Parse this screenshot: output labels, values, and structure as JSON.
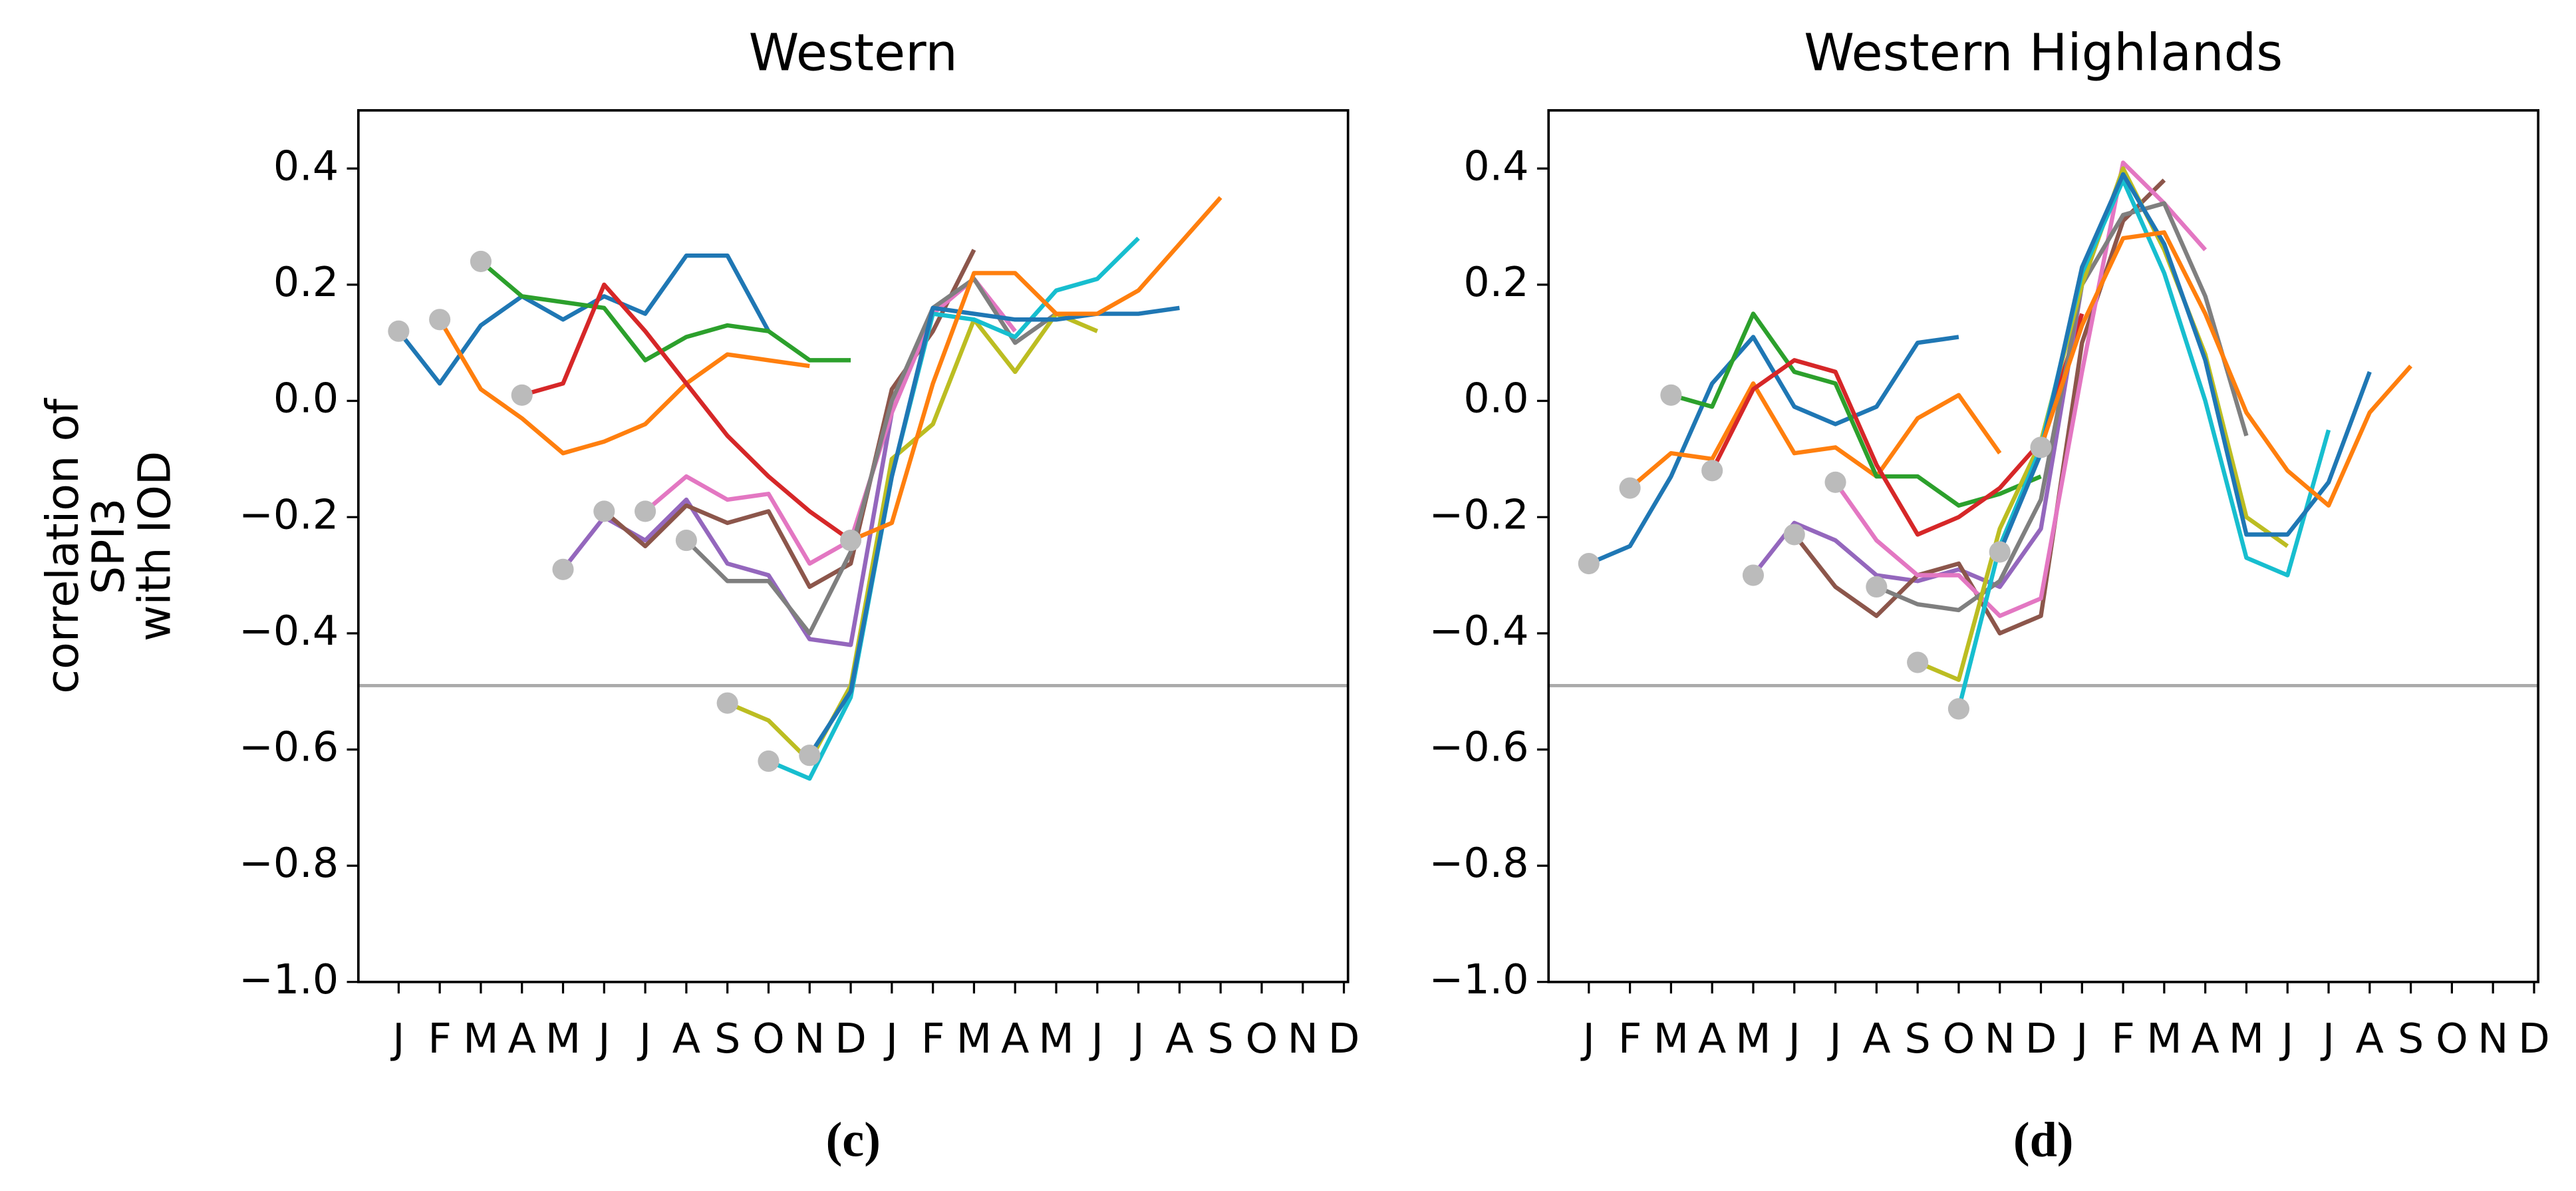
{
  "chart_data": [
    {
      "type": "line",
      "title": "Western",
      "caption": "(c)",
      "ylabel": [
        "correlation of",
        "SPI3",
        "with IOD"
      ],
      "categories": [
        "J",
        "F",
        "M",
        "A",
        "M",
        "J",
        "J",
        "A",
        "S",
        "O",
        "N",
        "D",
        "J",
        "F",
        "M",
        "A",
        "M",
        "J",
        "J",
        "A",
        "S",
        "O",
        "N",
        "D"
      ],
      "ylim": [
        -1.0,
        0.5
      ],
      "yticks": [
        0.4,
        0.2,
        {
          "value": 0.0,
          "label": "0.0"
        },
        {
          "value": -0.2,
          "label": "−0.2"
        },
        {
          "value": -0.4,
          "label": "−0.4"
        },
        {
          "value": -0.6,
          "label": "−0.6"
        },
        {
          "value": -0.8,
          "label": "−0.8"
        },
        {
          "value": -1.0,
          "label": "−1.0"
        }
      ],
      "hline": -0.49,
      "hline_color": "#aaaaaa",
      "start_marker_color": "#bbbbbb",
      "series": [
        {
          "color": "#1f77b4",
          "values": [
            0.12,
            0.03,
            0.13,
            0.18,
            0.14,
            0.18,
            0.15,
            0.25,
            0.25,
            0.12,
            null,
            null,
            null,
            null,
            null,
            null,
            null,
            null,
            null,
            null,
            null,
            null,
            null,
            null
          ]
        },
        {
          "color": "#ff7f0e",
          "values": [
            null,
            0.14,
            0.02,
            -0.03,
            -0.09,
            -0.07,
            -0.04,
            0.03,
            0.08,
            0.07,
            0.06,
            null,
            null,
            null,
            null,
            null,
            null,
            null,
            null,
            null,
            null,
            null,
            null,
            null
          ]
        },
        {
          "color": "#2ca02c",
          "values": [
            null,
            null,
            0.24,
            0.18,
            0.17,
            0.16,
            0.07,
            0.11,
            0.13,
            0.12,
            0.07,
            0.07,
            null,
            null,
            null,
            null,
            null,
            null,
            null,
            null,
            null,
            null,
            null,
            null
          ]
        },
        {
          "color": "#d62728",
          "values": [
            null,
            null,
            null,
            0.01,
            0.03,
            0.2,
            0.12,
            0.03,
            -0.06,
            -0.13,
            -0.19,
            -0.24,
            null,
            null,
            null,
            null,
            null,
            null,
            null,
            null,
            null,
            null,
            null,
            null
          ]
        },
        {
          "color": "#9467bd",
          "values": [
            null,
            null,
            null,
            null,
            -0.29,
            -0.2,
            -0.24,
            -0.17,
            -0.28,
            -0.3,
            -0.41,
            -0.42,
            -0.02,
            0.15,
            null,
            null,
            null,
            null,
            null,
            null,
            null,
            null,
            null,
            null
          ]
        },
        {
          "color": "#8c564b",
          "values": [
            null,
            null,
            null,
            null,
            null,
            -0.19,
            -0.25,
            -0.18,
            -0.21,
            -0.19,
            -0.32,
            -0.28,
            0.02,
            0.12,
            0.26,
            null,
            null,
            null,
            null,
            null,
            null,
            null,
            null,
            null
          ]
        },
        {
          "color": "#e377c2",
          "values": [
            null,
            null,
            null,
            null,
            null,
            null,
            -0.19,
            -0.13,
            -0.17,
            -0.16,
            -0.28,
            -0.24,
            -0.02,
            0.15,
            0.21,
            0.12,
            null,
            null,
            null,
            null,
            null,
            null,
            null,
            null
          ]
        },
        {
          "color": "#7f7f7f",
          "values": [
            null,
            null,
            null,
            null,
            null,
            null,
            null,
            -0.24,
            -0.31,
            -0.31,
            -0.4,
            -0.26,
            0.0,
            0.16,
            0.21,
            0.1,
            0.15,
            null,
            null,
            null,
            null,
            null,
            null,
            null
          ]
        },
        {
          "color": "#bcbd22",
          "values": [
            null,
            null,
            null,
            null,
            null,
            null,
            null,
            null,
            -0.52,
            -0.55,
            -0.62,
            -0.49,
            -0.1,
            -0.04,
            0.14,
            0.05,
            0.15,
            0.12,
            null,
            null,
            null,
            null,
            null,
            null
          ]
        },
        {
          "color": "#17becf",
          "values": [
            null,
            null,
            null,
            null,
            null,
            null,
            null,
            null,
            null,
            -0.62,
            -0.65,
            -0.51,
            -0.13,
            0.15,
            0.14,
            0.11,
            0.19,
            0.21,
            0.28,
            null,
            null,
            null,
            null,
            null
          ]
        },
        {
          "color": "#1f77b4",
          "values": [
            null,
            null,
            null,
            null,
            null,
            null,
            null,
            null,
            null,
            null,
            -0.61,
            -0.5,
            -0.13,
            0.16,
            0.15,
            0.14,
            0.14,
            0.15,
            0.15,
            0.16,
            null,
            null,
            null,
            null
          ]
        },
        {
          "color": "#ff7f0e",
          "values": [
            null,
            null,
            null,
            null,
            null,
            null,
            null,
            null,
            null,
            null,
            null,
            -0.24,
            -0.21,
            0.03,
            0.22,
            0.22,
            0.15,
            0.15,
            0.19,
            0.27,
            0.35,
            null,
            null,
            null
          ]
        }
      ]
    },
    {
      "type": "line",
      "title": "Western Highlands",
      "caption": "(d)",
      "categories": [
        "J",
        "F",
        "M",
        "A",
        "M",
        "J",
        "J",
        "A",
        "S",
        "O",
        "N",
        "D",
        "J",
        "F",
        "M",
        "A",
        "M",
        "J",
        "J",
        "A",
        "S",
        "O",
        "N",
        "D"
      ],
      "ylim": [
        -1.0,
        0.5
      ],
      "yticks": [
        0.4,
        0.2,
        {
          "value": 0.0,
          "label": "0.0"
        },
        {
          "value": -0.2,
          "label": "−0.2"
        },
        {
          "value": -0.4,
          "label": "−0.4"
        },
        {
          "value": -0.6,
          "label": "−0.6"
        },
        {
          "value": -0.8,
          "label": "−0.8"
        },
        {
          "value": -1.0,
          "label": "−1.0"
        }
      ],
      "hline": -0.49,
      "hline_color": "#aaaaaa",
      "start_marker_color": "#bbbbbb",
      "series": [
        {
          "color": "#1f77b4",
          "values": [
            -0.28,
            -0.25,
            -0.13,
            0.03,
            0.11,
            -0.01,
            -0.04,
            -0.01,
            0.1,
            0.11,
            null,
            null,
            null,
            null,
            null,
            null,
            null,
            null,
            null,
            null,
            null,
            null,
            null,
            null
          ]
        },
        {
          "color": "#ff7f0e",
          "values": [
            null,
            -0.15,
            -0.09,
            -0.1,
            0.03,
            -0.09,
            -0.08,
            -0.13,
            -0.03,
            0.01,
            -0.09,
            null,
            null,
            null,
            null,
            null,
            null,
            null,
            null,
            null,
            null,
            null,
            null,
            null
          ]
        },
        {
          "color": "#2ca02c",
          "values": [
            null,
            null,
            0.01,
            -0.01,
            0.15,
            0.05,
            0.03,
            -0.13,
            -0.13,
            -0.18,
            -0.16,
            -0.13,
            null,
            null,
            null,
            null,
            null,
            null,
            null,
            null,
            null,
            null,
            null,
            null
          ]
        },
        {
          "color": "#d62728",
          "values": [
            null,
            null,
            null,
            -0.12,
            0.02,
            0.07,
            0.05,
            -0.11,
            -0.23,
            -0.2,
            -0.15,
            -0.07,
            0.15,
            null,
            null,
            null,
            null,
            null,
            null,
            null,
            null,
            null,
            null,
            null
          ]
        },
        {
          "color": "#9467bd",
          "values": [
            null,
            null,
            null,
            null,
            -0.3,
            -0.21,
            -0.24,
            -0.3,
            -0.31,
            -0.29,
            -0.32,
            -0.22,
            0.2,
            0.4,
            null,
            null,
            null,
            null,
            null,
            null,
            null,
            null,
            null,
            null
          ]
        },
        {
          "color": "#8c564b",
          "values": [
            null,
            null,
            null,
            null,
            null,
            -0.23,
            -0.32,
            -0.37,
            -0.3,
            -0.28,
            -0.4,
            -0.37,
            0.1,
            0.31,
            0.38,
            null,
            null,
            null,
            null,
            null,
            null,
            null,
            null,
            null
          ]
        },
        {
          "color": "#e377c2",
          "values": [
            null,
            null,
            null,
            null,
            null,
            null,
            -0.14,
            -0.24,
            -0.3,
            -0.3,
            -0.37,
            -0.34,
            0.05,
            0.41,
            0.34,
            0.26,
            null,
            null,
            null,
            null,
            null,
            null,
            null,
            null
          ]
        },
        {
          "color": "#7f7f7f",
          "values": [
            null,
            null,
            null,
            null,
            null,
            null,
            null,
            -0.32,
            -0.35,
            -0.36,
            -0.31,
            -0.17,
            0.2,
            0.32,
            0.34,
            0.18,
            -0.06,
            null,
            null,
            null,
            null,
            null,
            null,
            null
          ]
        },
        {
          "color": "#bcbd22",
          "values": [
            null,
            null,
            null,
            null,
            null,
            null,
            null,
            null,
            -0.45,
            -0.48,
            -0.22,
            -0.07,
            0.2,
            0.4,
            0.26,
            0.08,
            -0.2,
            -0.25,
            null,
            null,
            null,
            null,
            null,
            null
          ]
        },
        {
          "color": "#17becf",
          "values": [
            null,
            null,
            null,
            null,
            null,
            null,
            null,
            null,
            null,
            -0.53,
            -0.25,
            -0.08,
            0.22,
            0.38,
            0.22,
            0.0,
            -0.27,
            -0.3,
            -0.05,
            null,
            null,
            null,
            null,
            null
          ]
        },
        {
          "color": "#1f77b4",
          "values": [
            null,
            null,
            null,
            null,
            null,
            null,
            null,
            null,
            null,
            null,
            -0.26,
            -0.09,
            0.23,
            0.39,
            0.27,
            0.07,
            -0.23,
            -0.23,
            -0.14,
            0.05,
            null,
            null,
            null,
            null
          ]
        },
        {
          "color": "#ff7f0e",
          "values": [
            null,
            null,
            null,
            null,
            null,
            null,
            null,
            null,
            null,
            null,
            null,
            -0.08,
            0.13,
            0.28,
            0.29,
            0.15,
            -0.02,
            -0.12,
            -0.18,
            -0.02,
            0.06,
            null,
            null,
            null
          ]
        }
      ]
    }
  ]
}
